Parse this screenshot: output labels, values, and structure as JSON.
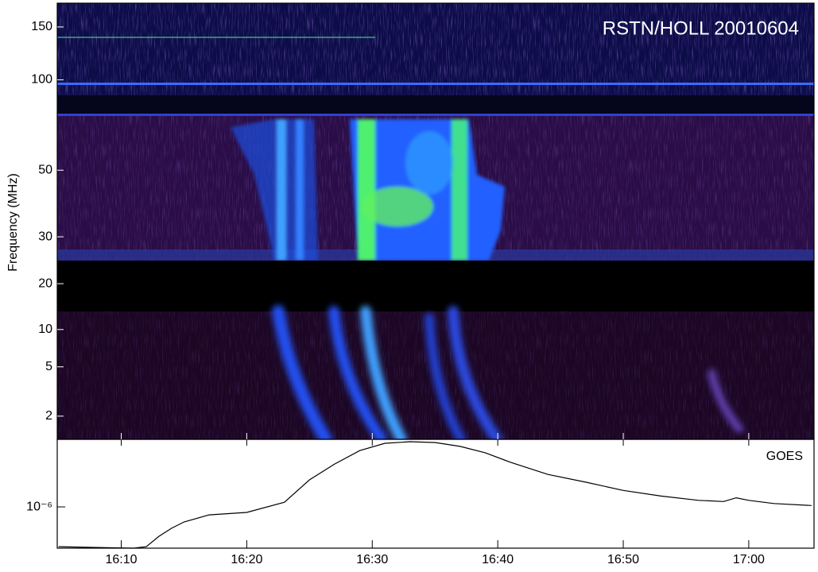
{
  "chart_data": [
    {
      "type": "spectrogram",
      "annotation": "RSTN/HOLL 20010604",
      "ylabel": "Frequency (MHz)",
      "log_y": true,
      "ylim": [
        1.3,
        180
      ],
      "ygap": [
        14,
        25
      ],
      "yticks": [
        2,
        5,
        10,
        20,
        30,
        50,
        100,
        150
      ],
      "xlim": [
        964.9,
        1025.2
      ],
      "xticks": [
        970,
        980,
        990,
        1000,
        1010,
        1020
      ]
    },
    {
      "type": "line",
      "annotation": "GOES",
      "log_y": true,
      "ylim": [
        5.5e-07,
        2.66e-06
      ],
      "yticks": [
        {
          "value": 1e-06,
          "label": "10⁻⁶"
        }
      ],
      "xlim": [
        964.9,
        1025.2
      ],
      "xticks": [
        {
          "value": 970,
          "label": "16:10"
        },
        {
          "value": 980,
          "label": "16:20"
        },
        {
          "value": 990,
          "label": "16:30"
        },
        {
          "value": 1000,
          "label": "16:40"
        },
        {
          "value": 1010,
          "label": "16:50"
        },
        {
          "value": 1020,
          "label": "17:00"
        }
      ],
      "color": "#000000",
      "x": [
        965,
        968,
        971,
        972,
        973,
        974,
        975,
        977,
        980,
        983,
        985,
        987,
        989,
        991,
        993,
        995,
        997,
        999,
        1001,
        1004,
        1007,
        1010,
        1013,
        1016,
        1018,
        1019,
        1020,
        1022,
        1025
      ],
      "values": [
        5.62e-07,
        5.56e-07,
        5.5e-07,
        5.62e-07,
        6.53e-07,
        7.33e-07,
        8.04e-07,
        8.91e-07,
        9.23e-07,
        1.07e-06,
        1.48e-06,
        1.86e-06,
        2.26e-06,
        2.51e-06,
        2.57e-06,
        2.54e-06,
        2.4e-06,
        2.19e-06,
        1.91e-06,
        1.6e-06,
        1.43e-06,
        1.27e-06,
        1.17e-06,
        1.1e-06,
        1.08e-06,
        1.14e-06,
        1.1e-06,
        1.05e-06,
        1.02e-06
      ]
    }
  ]
}
